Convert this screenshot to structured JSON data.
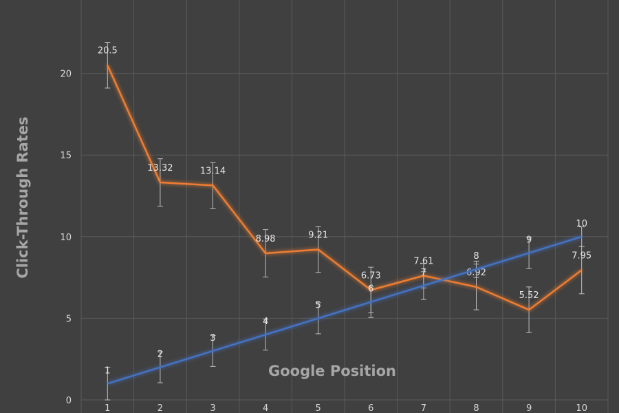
{
  "chart_data": {
    "type": "line",
    "x": [
      1,
      2,
      3,
      4,
      5,
      6,
      7,
      8,
      9,
      10
    ],
    "series": [
      {
        "values": [
          20.5,
          13.32,
          13.14,
          8.98,
          9.21,
          6.73,
          7.61,
          6.92,
          5.52,
          7.95
        ],
        "labels": [
          "20.5",
          "13.32",
          "13.14",
          "8.98",
          "9.21",
          "6.73",
          "7.61",
          "6.92",
          "5.52",
          "7.95"
        ],
        "error": [
          1.4,
          1.45,
          1.4,
          1.45,
          1.4,
          1.4,
          0.75,
          1.4,
          1.4,
          1.45
        ],
        "color": "#ed7d31"
      },
      {
        "values": [
          1,
          2,
          3,
          4,
          5,
          6,
          7,
          8,
          9,
          10
        ],
        "labels": [
          "1",
          "2",
          "3",
          "4",
          "5",
          "6",
          "7",
          "8",
          "9",
          "10"
        ],
        "error": [
          1.0,
          0.95,
          0.95,
          0.95,
          0.95,
          0.95,
          0.85,
          0.5,
          0.95,
          0.6
        ],
        "color": "#4472c4"
      }
    ],
    "xlabel": "Google Position",
    "ylabel": "Click-Through Rates",
    "yticks": [
      0,
      5,
      10,
      15,
      20
    ],
    "ylim": [
      0,
      25
    ],
    "grid": true,
    "colors": {
      "background": "#404040",
      "gridline": "#5a5a5a",
      "text": "#d9d9d9",
      "errorbar": "#bfbfbf"
    }
  }
}
